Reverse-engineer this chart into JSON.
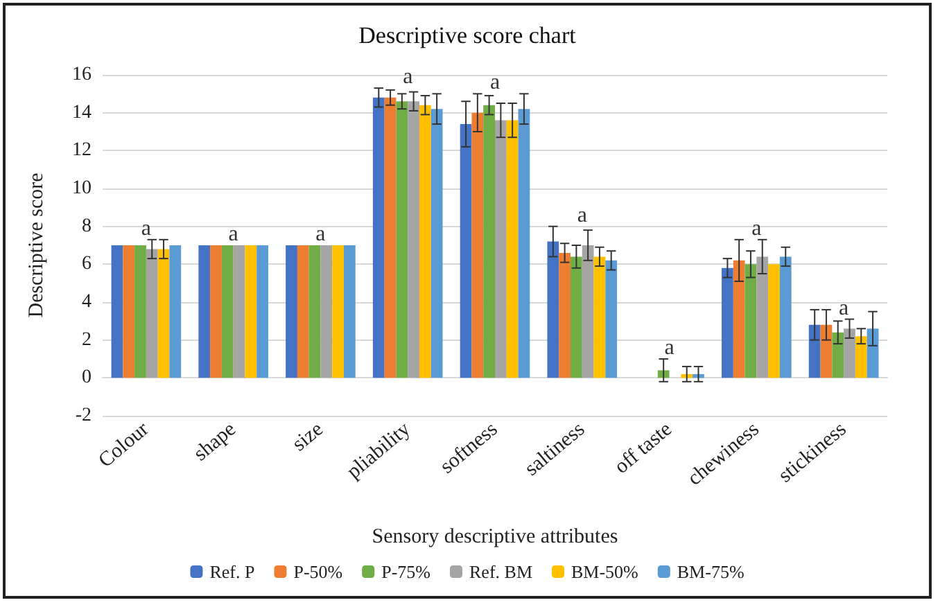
{
  "chart_data": {
    "type": "bar",
    "title": "Descriptive score chart",
    "xlabel": "Sensory descriptive attributes",
    "ylabel": "Descriptive score",
    "categories": [
      "Colour",
      "shape",
      "size",
      "pliability",
      "softness",
      "saltiness",
      "off taste",
      "chewiness",
      "stickiness"
    ],
    "series": [
      {
        "name": "Ref. P",
        "color": "#4472c4",
        "values": [
          7,
          7,
          7,
          14.8,
          13.4,
          7.2,
          0,
          5.8,
          2.8
        ],
        "errors": [
          null,
          null,
          null,
          0.5,
          1.2,
          0.8,
          null,
          0.5,
          0.8
        ]
      },
      {
        "name": "P-50%",
        "color": "#ed7d31",
        "values": [
          7,
          7,
          7,
          14.8,
          14.0,
          6.6,
          0,
          6.2,
          2.8
        ],
        "errors": [
          null,
          null,
          null,
          0.4,
          1.0,
          0.5,
          null,
          1.1,
          0.8
        ]
      },
      {
        "name": "P-75%",
        "color": "#70ad47",
        "values": [
          7,
          7,
          7,
          14.6,
          14.4,
          6.4,
          0.4,
          6.0,
          2.4
        ],
        "errors": [
          null,
          null,
          null,
          0.4,
          0.5,
          0.6,
          0.6,
          0.7,
          0.6
        ]
      },
      {
        "name": "Ref. BM",
        "color": "#a5a5a5",
        "values": [
          6.8,
          7,
          7,
          14.6,
          13.6,
          7.0,
          0,
          6.4,
          2.6
        ],
        "errors": [
          0.5,
          null,
          null,
          0.5,
          0.9,
          0.8,
          null,
          0.9,
          0.5
        ]
      },
      {
        "name": "BM-50%",
        "color": "#ffc000",
        "values": [
          6.8,
          7,
          7,
          14.4,
          13.6,
          6.4,
          0.2,
          6.0,
          2.2
        ],
        "errors": [
          0.5,
          null,
          null,
          0.5,
          0.9,
          0.5,
          0.4,
          null,
          0.4
        ]
      },
      {
        "name": "BM-75%",
        "color": "#5b9bd5",
        "values": [
          7,
          7,
          7,
          14.2,
          14.2,
          6.2,
          0.2,
          6.4,
          2.6
        ],
        "errors": [
          null,
          null,
          null,
          0.8,
          0.8,
          0.5,
          0.4,
          0.5,
          0.9
        ]
      }
    ],
    "annotations": [
      {
        "text": "a",
        "x": "Colour",
        "y": 7.3
      },
      {
        "text": "a",
        "x": "shape",
        "y": 7
      },
      {
        "text": "a",
        "x": "size",
        "y": 7
      },
      {
        "text": "a",
        "x": "pliability",
        "y": 15.3
      },
      {
        "text": "a",
        "x": "softness",
        "y": 15.0
      },
      {
        "text": "a",
        "x": "saltiness",
        "y": 8.0
      },
      {
        "text": "a",
        "x": "off taste",
        "y": 1.0
      },
      {
        "text": "a",
        "x": "chewiness",
        "y": 7.3
      },
      {
        "text": "a",
        "x": "stickiness",
        "y": 3.1
      }
    ],
    "ylim": [
      -2,
      16
    ],
    "yticks": [
      -2,
      0,
      2,
      4,
      6,
      8,
      10,
      12,
      14,
      16
    ],
    "grid": "y",
    "legend": "bottom"
  }
}
